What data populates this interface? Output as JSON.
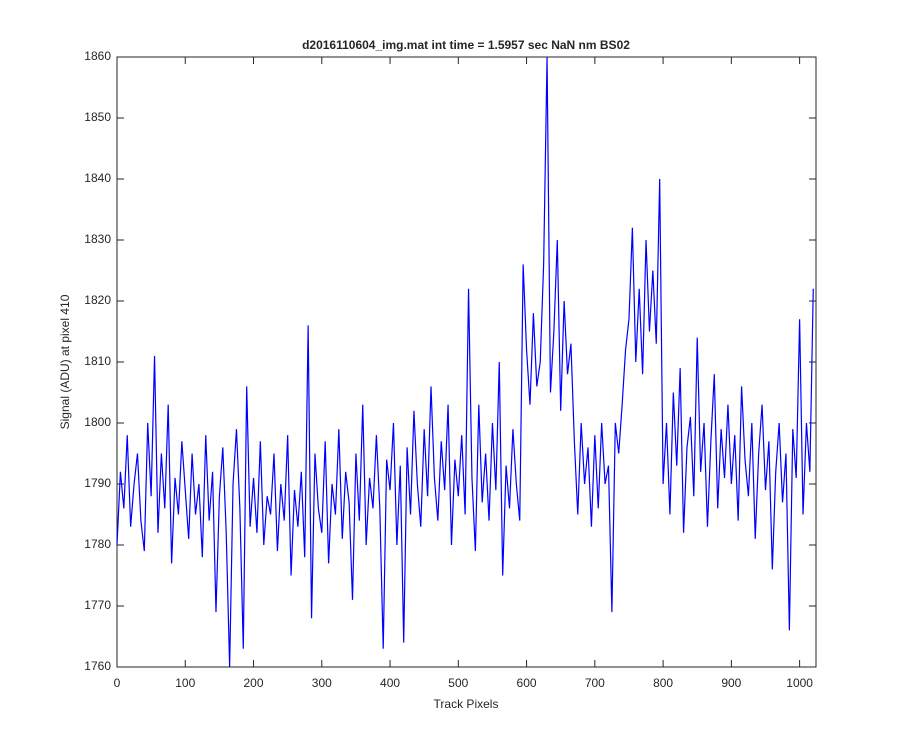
{
  "chart_data": {
    "type": "line",
    "title": "d2016110604_img.mat int time = 1.5957 sec  NaN nm BS02",
    "x_label": "Track Pixels",
    "y_label": "Signal (ADU) at pixel 410",
    "x": [
      0,
      5,
      10,
      15,
      20,
      25,
      30,
      35,
      40,
      45,
      50,
      55,
      60,
      65,
      70,
      75,
      80,
      85,
      90,
      95,
      100,
      105,
      110,
      115,
      120,
      125,
      130,
      135,
      140,
      145,
      150,
      155,
      160,
      165,
      170,
      175,
      180,
      185,
      190,
      195,
      200,
      205,
      210,
      215,
      220,
      225,
      230,
      235,
      240,
      245,
      250,
      255,
      260,
      265,
      270,
      275,
      280,
      285,
      290,
      295,
      300,
      305,
      310,
      315,
      320,
      325,
      330,
      335,
      340,
      345,
      350,
      355,
      360,
      365,
      370,
      375,
      380,
      385,
      390,
      395,
      400,
      405,
      410,
      415,
      420,
      425,
      430,
      435,
      440,
      445,
      450,
      455,
      460,
      465,
      470,
      475,
      480,
      485,
      490,
      495,
      500,
      505,
      510,
      515,
      520,
      525,
      530,
      535,
      540,
      545,
      550,
      555,
      560,
      565,
      570,
      575,
      580,
      585,
      590,
      595,
      600,
      605,
      610,
      615,
      620,
      625,
      630,
      635,
      640,
      645,
      650,
      655,
      660,
      665,
      670,
      675,
      680,
      685,
      690,
      695,
      700,
      705,
      710,
      715,
      720,
      725,
      730,
      735,
      740,
      745,
      750,
      755,
      760,
      765,
      770,
      775,
      780,
      785,
      790,
      795,
      800,
      805,
      810,
      815,
      820,
      825,
      830,
      835,
      840,
      845,
      850,
      855,
      860,
      865,
      870,
      875,
      880,
      885,
      890,
      895,
      900,
      905,
      910,
      915,
      920,
      925,
      930,
      935,
      940,
      945,
      950,
      955,
      960,
      965,
      970,
      975,
      980,
      985,
      990,
      995,
      1000,
      1005,
      1010,
      1015,
      1020
    ],
    "series": [
      {
        "color": "#0000ff",
        "values": [
          1780,
          1792,
          1786,
          1798,
          1783,
          1790,
          1795,
          1784,
          1779,
          1800,
          1788,
          1811,
          1782,
          1795,
          1786,
          1803,
          1777,
          1791,
          1785,
          1797,
          1789,
          1781,
          1795,
          1785,
          1790,
          1778,
          1798,
          1784,
          1792,
          1769,
          1788,
          1796,
          1782,
          1760,
          1790,
          1799,
          1786,
          1763,
          1806,
          1783,
          1791,
          1782,
          1797,
          1780,
          1788,
          1785,
          1795,
          1779,
          1790,
          1784,
          1798,
          1775,
          1789,
          1783,
          1792,
          1778,
          1816,
          1768,
          1795,
          1786,
          1782,
          1797,
          1777,
          1790,
          1785,
          1799,
          1781,
          1792,
          1787,
          1771,
          1795,
          1784,
          1803,
          1780,
          1791,
          1786,
          1798,
          1786,
          1763,
          1794,
          1789,
          1800,
          1780,
          1793,
          1764,
          1796,
          1785,
          1802,
          1790,
          1783,
          1799,
          1788,
          1806,
          1791,
          1784,
          1797,
          1789,
          1803,
          1780,
          1794,
          1788,
          1798,
          1785,
          1822,
          1791,
          1779,
          1803,
          1787,
          1795,
          1784,
          1800,
          1789,
          1810,
          1775,
          1793,
          1786,
          1799,
          1790,
          1784,
          1826,
          1812,
          1803,
          1818,
          1806,
          1810,
          1826,
          1860,
          1805,
          1815,
          1830,
          1802,
          1820,
          1808,
          1813,
          1797,
          1785,
          1800,
          1790,
          1796,
          1783,
          1798,
          1786,
          1800,
          1790,
          1793,
          1769,
          1800,
          1795,
          1803,
          1812,
          1817,
          1832,
          1810,
          1822,
          1808,
          1830,
          1815,
          1825,
          1813,
          1840,
          1790,
          1800,
          1785,
          1805,
          1793,
          1809,
          1782,
          1796,
          1801,
          1788,
          1814,
          1792,
          1800,
          1783,
          1797,
          1808,
          1786,
          1799,
          1791,
          1803,
          1790,
          1798,
          1784,
          1806,
          1794,
          1788,
          1800,
          1781,
          1795,
          1803,
          1789,
          1797,
          1776,
          1792,
          1800,
          1787,
          1795,
          1766,
          1799,
          1791,
          1817,
          1785,
          1800,
          1792,
          1822
        ]
      }
    ],
    "xlim": [
      0,
      1024
    ],
    "ylim": [
      1760,
      1860
    ],
    "xticks": [
      0,
      100,
      200,
      300,
      400,
      500,
      600,
      700,
      800,
      900,
      1000
    ],
    "yticks": [
      1760,
      1770,
      1780,
      1790,
      1800,
      1810,
      1820,
      1830,
      1840,
      1850,
      1860
    ]
  }
}
